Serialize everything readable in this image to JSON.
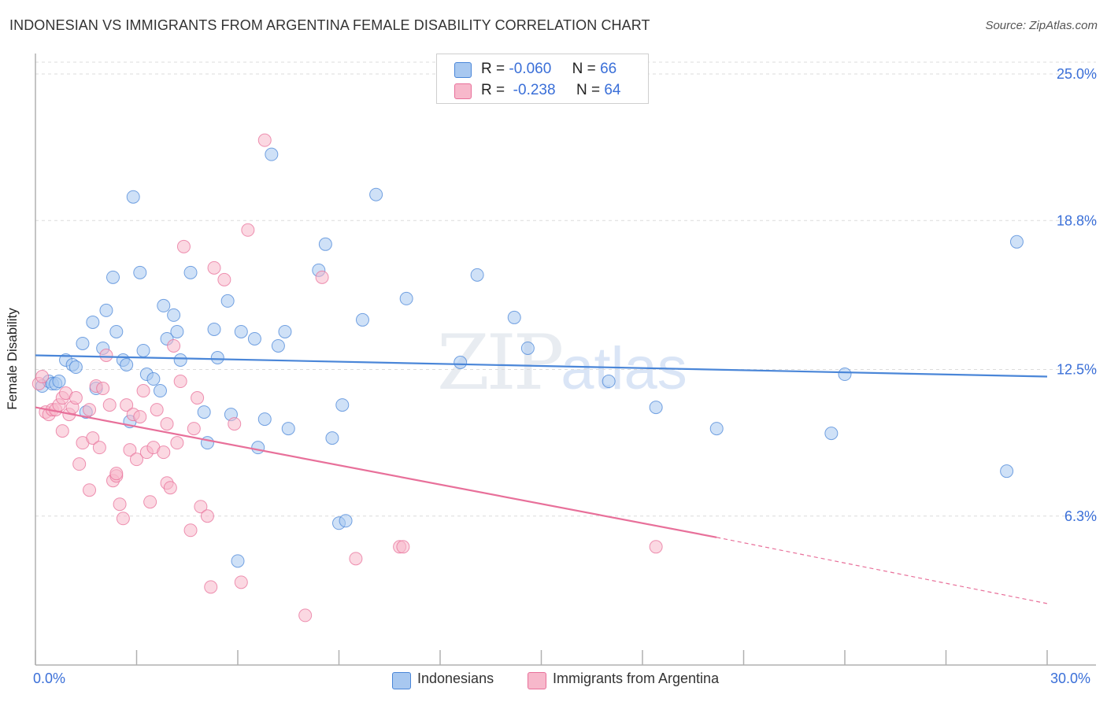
{
  "header": {
    "title": "INDONESIAN VS IMMIGRANTS FROM ARGENTINA FEMALE DISABILITY CORRELATION CHART",
    "source": "Source: ZipAtlas.com"
  },
  "watermark": {
    "zip": "ZIP",
    "atlas": "atlas"
  },
  "stats": [
    {
      "r_label": "R =",
      "r_value": "-0.060",
      "n_label": "N =",
      "n_value": "66",
      "color": "#a8c8f0"
    },
    {
      "r_label": "R =",
      "r_value": "-0.238",
      "n_label": "N =",
      "n_value": "64",
      "color": "#f7b8cb"
    }
  ],
  "legend": [
    {
      "label": "Indonesians",
      "color": "#a8c8f0"
    },
    {
      "label": "Immigrants from Argentina",
      "color": "#f7b8cb"
    }
  ],
  "chart_data": {
    "type": "scatter",
    "title": "INDONESIAN VS IMMIGRANTS FROM ARGENTINA FEMALE DISABILITY CORRELATION CHART",
    "xlabel": "",
    "ylabel": "Female Disability",
    "xlim": [
      0,
      30
    ],
    "ylim": [
      0,
      25.8
    ],
    "x_tick_labels": [
      "0.0%",
      "30.0%"
    ],
    "y_ticks": [
      6.3,
      12.5,
      18.8,
      25.0
    ],
    "y_tick_labels": [
      "6.3%",
      "12.5%",
      "18.8%",
      "25.0%"
    ],
    "grid": true,
    "legend_position": "bottom",
    "series": [
      {
        "name": "Indonesians",
        "color": "#4a86d8",
        "fill": "#a8c8f0",
        "trend": {
          "x": [
            0,
            30
          ],
          "y": [
            13.1,
            12.2
          ]
        },
        "points": [
          [
            0.2,
            11.8
          ],
          [
            0.4,
            12.0
          ],
          [
            0.5,
            11.9
          ],
          [
            0.6,
            11.9
          ],
          [
            0.7,
            12.0
          ],
          [
            0.9,
            12.9
          ],
          [
            1.1,
            12.7
          ],
          [
            1.2,
            12.6
          ],
          [
            1.4,
            13.6
          ],
          [
            1.5,
            10.7
          ],
          [
            1.7,
            14.5
          ],
          [
            1.8,
            11.7
          ],
          [
            2.0,
            13.4
          ],
          [
            2.1,
            15.0
          ],
          [
            2.3,
            16.4
          ],
          [
            2.4,
            14.1
          ],
          [
            2.6,
            12.9
          ],
          [
            2.7,
            12.7
          ],
          [
            2.8,
            10.3
          ],
          [
            2.9,
            19.8
          ],
          [
            3.1,
            16.6
          ],
          [
            3.2,
            13.3
          ],
          [
            3.3,
            12.3
          ],
          [
            3.5,
            12.1
          ],
          [
            3.7,
            11.6
          ],
          [
            3.8,
            15.2
          ],
          [
            3.9,
            13.8
          ],
          [
            4.1,
            14.8
          ],
          [
            4.2,
            14.1
          ],
          [
            4.3,
            12.9
          ],
          [
            4.6,
            16.6
          ],
          [
            5.0,
            10.7
          ],
          [
            5.1,
            9.4
          ],
          [
            5.3,
            14.2
          ],
          [
            5.4,
            13.0
          ],
          [
            5.7,
            15.4
          ],
          [
            5.8,
            10.6
          ],
          [
            6.0,
            4.4
          ],
          [
            6.1,
            14.1
          ],
          [
            6.5,
            13.8
          ],
          [
            6.6,
            9.2
          ],
          [
            6.8,
            10.4
          ],
          [
            7.0,
            21.6
          ],
          [
            7.2,
            13.5
          ],
          [
            7.4,
            14.1
          ],
          [
            7.5,
            10.0
          ],
          [
            8.4,
            16.7
          ],
          [
            8.6,
            17.8
          ],
          [
            8.8,
            9.6
          ],
          [
            9.1,
            11.0
          ],
          [
            9.0,
            6.0
          ],
          [
            9.2,
            6.1
          ],
          [
            9.7,
            14.6
          ],
          [
            10.1,
            19.9
          ],
          [
            11.0,
            15.5
          ],
          [
            13.1,
            16.5
          ],
          [
            14.2,
            14.7
          ],
          [
            14.6,
            13.4
          ],
          [
            18.4,
            10.9
          ],
          [
            20.2,
            10.0
          ],
          [
            23.6,
            9.8
          ],
          [
            28.8,
            8.2
          ],
          [
            29.1,
            17.9
          ],
          [
            24.0,
            12.3
          ],
          [
            17.0,
            12.0
          ],
          [
            12.6,
            12.8
          ]
        ]
      },
      {
        "name": "Immigrants from Argentina",
        "color": "#e8709a",
        "fill": "#f7b8cb",
        "trend": {
          "x": [
            0,
            20.2
          ],
          "y": [
            10.9,
            5.4
          ],
          "dashed_to": {
            "x": 30,
            "y": 2.6
          }
        },
        "points": [
          [
            0.1,
            11.9
          ],
          [
            0.2,
            12.2
          ],
          [
            0.3,
            10.7
          ],
          [
            0.4,
            10.6
          ],
          [
            0.5,
            10.8
          ],
          [
            0.6,
            10.8
          ],
          [
            0.7,
            11.0
          ],
          [
            0.8,
            11.3
          ],
          [
            0.8,
            9.9
          ],
          [
            0.9,
            11.5
          ],
          [
            1.0,
            10.6
          ],
          [
            1.1,
            10.9
          ],
          [
            1.3,
            8.5
          ],
          [
            1.4,
            9.4
          ],
          [
            1.6,
            10.8
          ],
          [
            1.6,
            7.4
          ],
          [
            1.7,
            9.6
          ],
          [
            1.8,
            11.8
          ],
          [
            1.9,
            9.2
          ],
          [
            2.0,
            11.7
          ],
          [
            2.1,
            13.1
          ],
          [
            2.2,
            11.0
          ],
          [
            2.3,
            7.8
          ],
          [
            2.4,
            8.0
          ],
          [
            2.5,
            6.8
          ],
          [
            2.6,
            6.2
          ],
          [
            2.7,
            11.0
          ],
          [
            2.8,
            9.1
          ],
          [
            2.9,
            10.6
          ],
          [
            3.0,
            8.7
          ],
          [
            3.1,
            10.5
          ],
          [
            3.2,
            11.6
          ],
          [
            3.3,
            9.0
          ],
          [
            3.4,
            6.9
          ],
          [
            3.5,
            9.2
          ],
          [
            3.6,
            10.8
          ],
          [
            3.8,
            9.0
          ],
          [
            3.9,
            7.7
          ],
          [
            4.0,
            7.5
          ],
          [
            4.1,
            13.5
          ],
          [
            4.2,
            9.4
          ],
          [
            4.3,
            12.0
          ],
          [
            4.4,
            17.7
          ],
          [
            4.6,
            5.7
          ],
          [
            4.7,
            10.0
          ],
          [
            4.8,
            11.3
          ],
          [
            4.9,
            6.7
          ],
          [
            5.1,
            6.3
          ],
          [
            5.2,
            3.3
          ],
          [
            5.3,
            16.8
          ],
          [
            5.6,
            16.3
          ],
          [
            5.9,
            10.2
          ],
          [
            6.1,
            3.5
          ],
          [
            6.3,
            18.4
          ],
          [
            6.8,
            22.2
          ],
          [
            8.0,
            2.1
          ],
          [
            8.5,
            16.4
          ],
          [
            9.5,
            4.5
          ],
          [
            10.8,
            5.0
          ],
          [
            10.9,
            5.0
          ],
          [
            18.4,
            5.0
          ],
          [
            2.4,
            8.1
          ],
          [
            3.9,
            10.2
          ],
          [
            1.2,
            11.3
          ]
        ]
      }
    ]
  }
}
